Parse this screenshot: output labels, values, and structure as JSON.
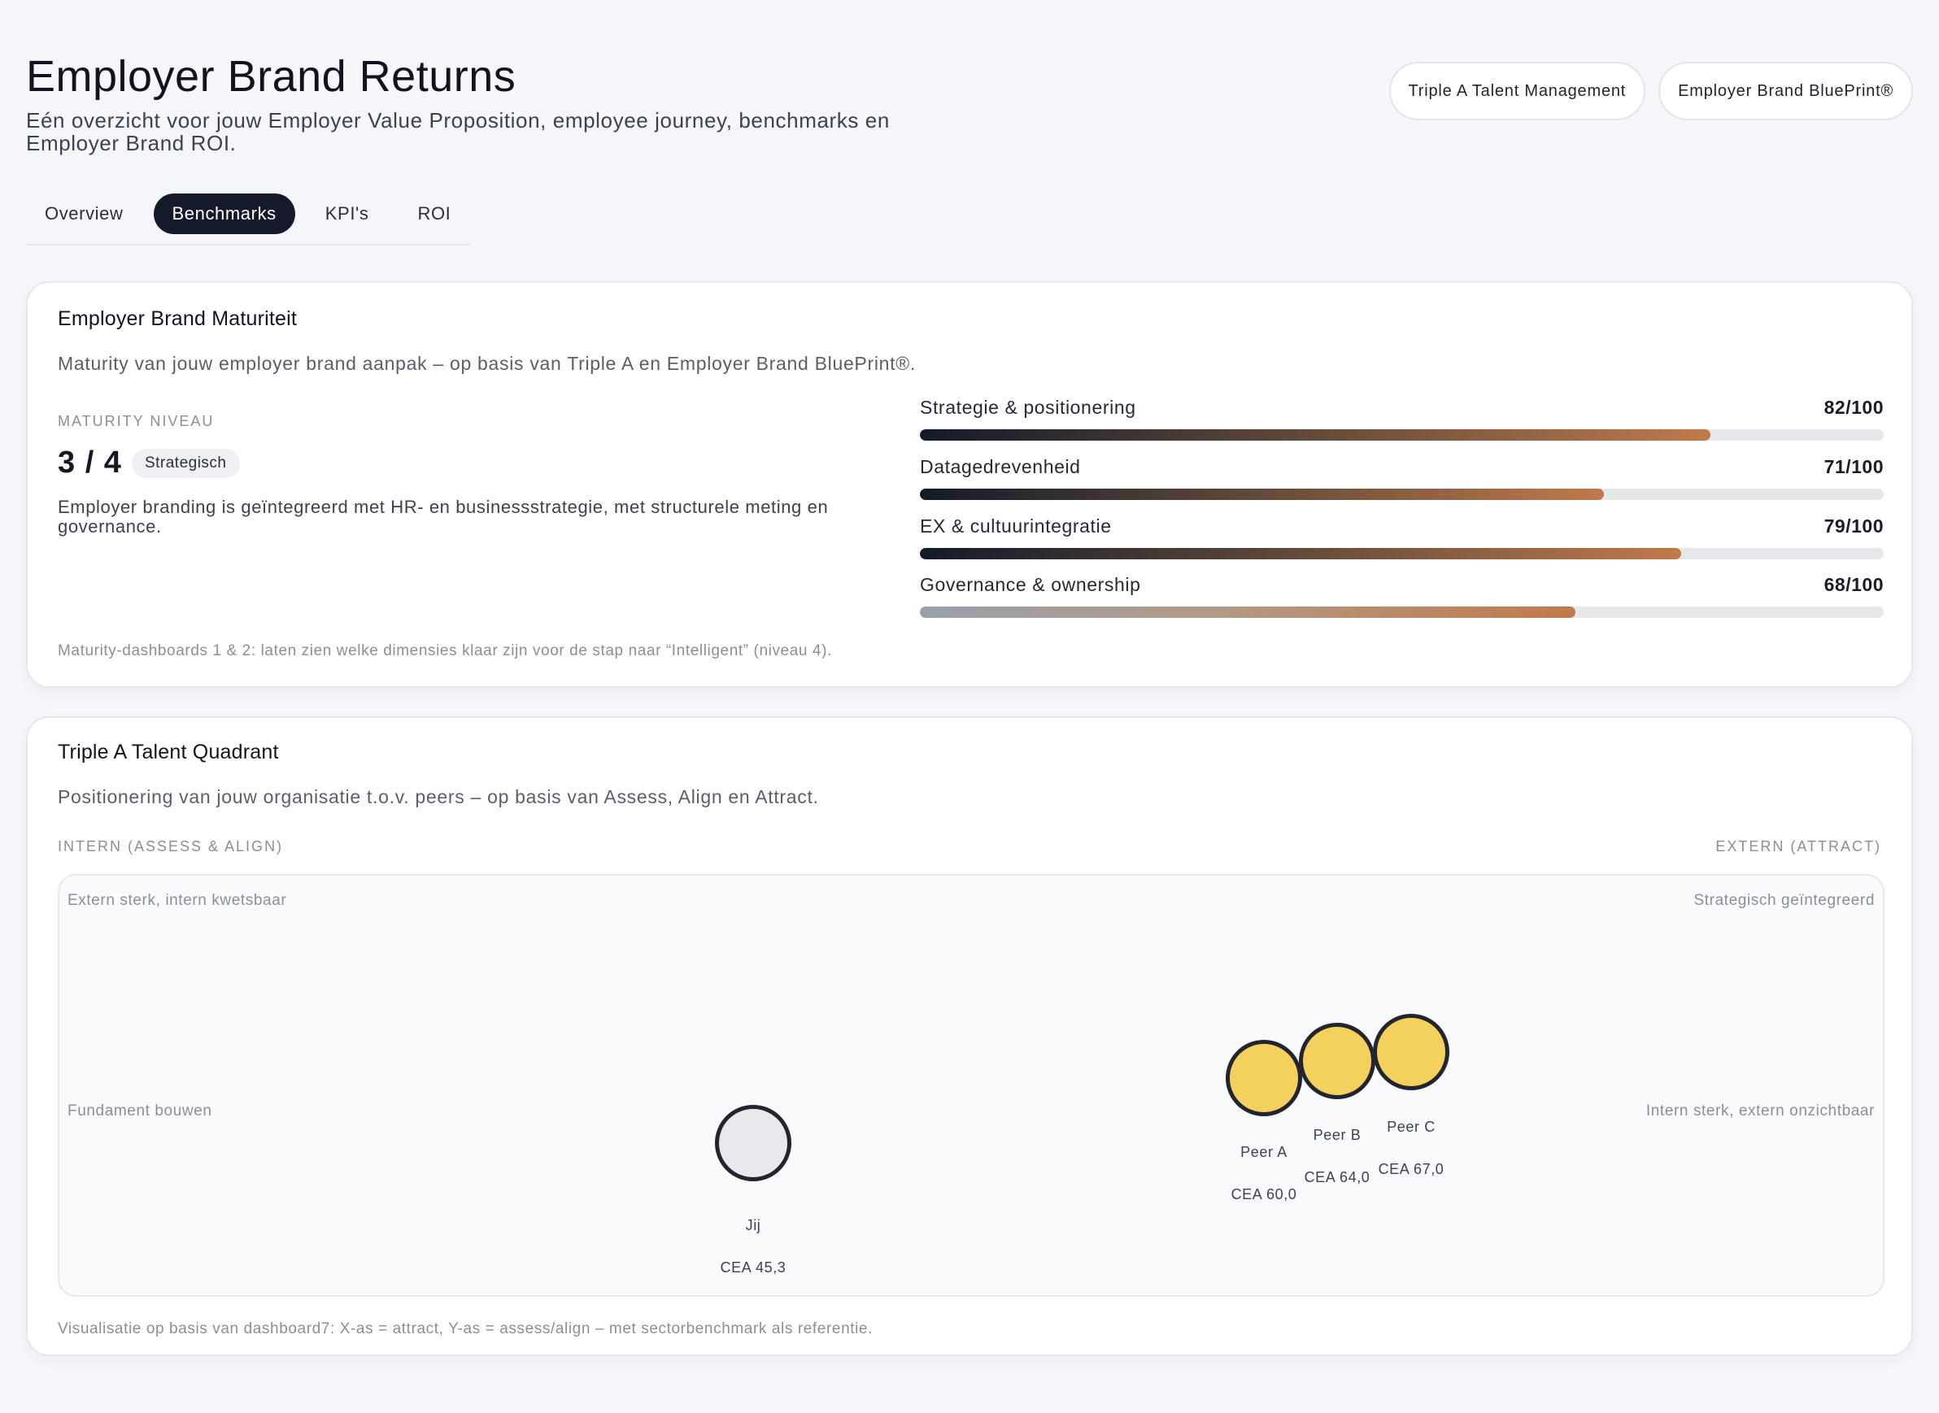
{
  "header": {
    "title": "Employer Brand Returns",
    "subtitle": "Eén overzicht voor jouw Employer Value Proposition, employee journey, benchmarks en Employer Brand ROI.",
    "chips": [
      "Triple A Talent Management",
      "Employer Brand BluePrint®"
    ]
  },
  "tabs": [
    {
      "label": "Overview",
      "active": false
    },
    {
      "label": "Benchmarks",
      "active": true
    },
    {
      "label": "KPI's",
      "active": false
    },
    {
      "label": "ROI",
      "active": false
    }
  ],
  "maturity": {
    "title": "Employer Brand Maturiteit",
    "description": "Maturity van jouw employer brand aanpak – op basis van Triple A en Employer Brand BluePrint®.",
    "level_label": "MATURITY NIVEAU",
    "level_value": "3 / 4",
    "level_badge": "Strategisch",
    "level_description": "Employer branding is geïntegreerd met HR- en businessstrategie, met structurele meting en governance.",
    "metrics": [
      {
        "label": "Strategie & positionering",
        "value": "82/100",
        "score": 82
      },
      {
        "label": "Datagedrevenheid",
        "value": "71/100",
        "score": 71
      },
      {
        "label": "EX & cultuurintegratie",
        "value": "79/100",
        "score": 79
      },
      {
        "label": "Governance & ownership",
        "value": "68/100",
        "score": 68
      }
    ],
    "footnote": "Maturity-dashboards 1 & 2: laten zien welke dimensies klaar zijn voor de stap naar “Intelligent” (niveau 4)."
  },
  "quadrant": {
    "title": "Triple A Talent Quadrant",
    "description": "Positionering van jouw organisatie t.o.v. peers – op basis van Assess, Align en Attract.",
    "axis_left": "INTERN (ASSESS & ALIGN)",
    "axis_right": "EXTERN (ATTRACT)",
    "labels": {
      "top_left": "Extern sterk, intern kwetsbaar",
      "top_right": "Strategisch geïntegreerd",
      "mid_left": "Fundament bouwen",
      "mid_right": "Intern sterk, extern onzichtbaar"
    },
    "points": [
      {
        "name": "Jij",
        "cea": "CEA 45,3",
        "color": "#e8e9ed"
      },
      {
        "name": "Peer A",
        "cea": "CEA 60,0",
        "color": "#f3d15c"
      },
      {
        "name": "Peer B",
        "cea": "CEA 64,0",
        "color": "#f3d15c"
      },
      {
        "name": "Peer C",
        "cea": "CEA 67,0",
        "color": "#f3d15c"
      }
    ],
    "footnote": "Visualisatie op basis van dashboard7: X-as = attract, Y-as = assess/align – met sectorbenchmark als referentie."
  }
}
